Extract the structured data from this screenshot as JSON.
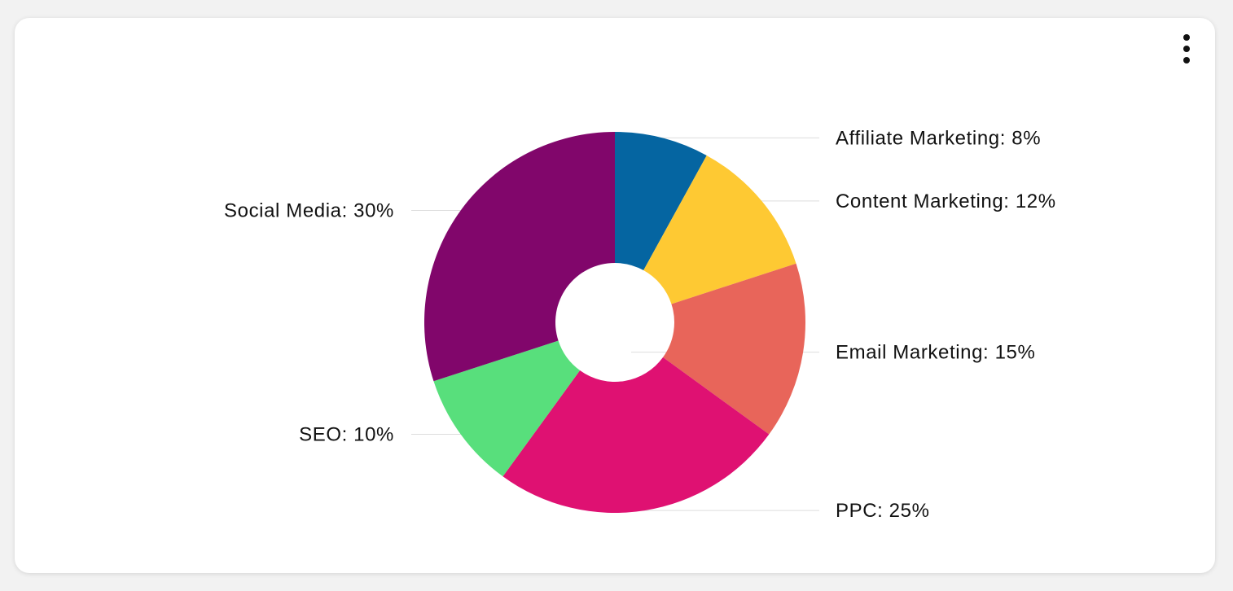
{
  "menu": {
    "icon": "more-vertical-icon"
  },
  "chart_data": {
    "type": "pie",
    "donut": true,
    "title": "",
    "start_angle": "12 o'clock",
    "direction": "clockwise",
    "slices": [
      {
        "label": "Affiliate Marketing",
        "value": 8,
        "text": "Affiliate Marketing: 8%",
        "color": "#0565a1",
        "side": "right"
      },
      {
        "label": "Content Marketing",
        "value": 12,
        "text": "Content Marketing: 12%",
        "color": "#fec933",
        "side": "right"
      },
      {
        "label": "Email Marketing",
        "value": 15,
        "text": "Email Marketing: 15%",
        "color": "#e8655a",
        "side": "right"
      },
      {
        "label": "PPC",
        "value": 25,
        "text": "PPC: 25%",
        "color": "#df1172",
        "side": "right"
      },
      {
        "label": "SEO",
        "value": 10,
        "text": "SEO: 10%",
        "color": "#58df7c",
        "side": "left"
      },
      {
        "label": "Social Media",
        "value": 30,
        "text": "Social Media: 30%",
        "color": "#81066b",
        "side": "left"
      }
    ],
    "legend": "none",
    "leader_line_color": "#dddddd"
  }
}
